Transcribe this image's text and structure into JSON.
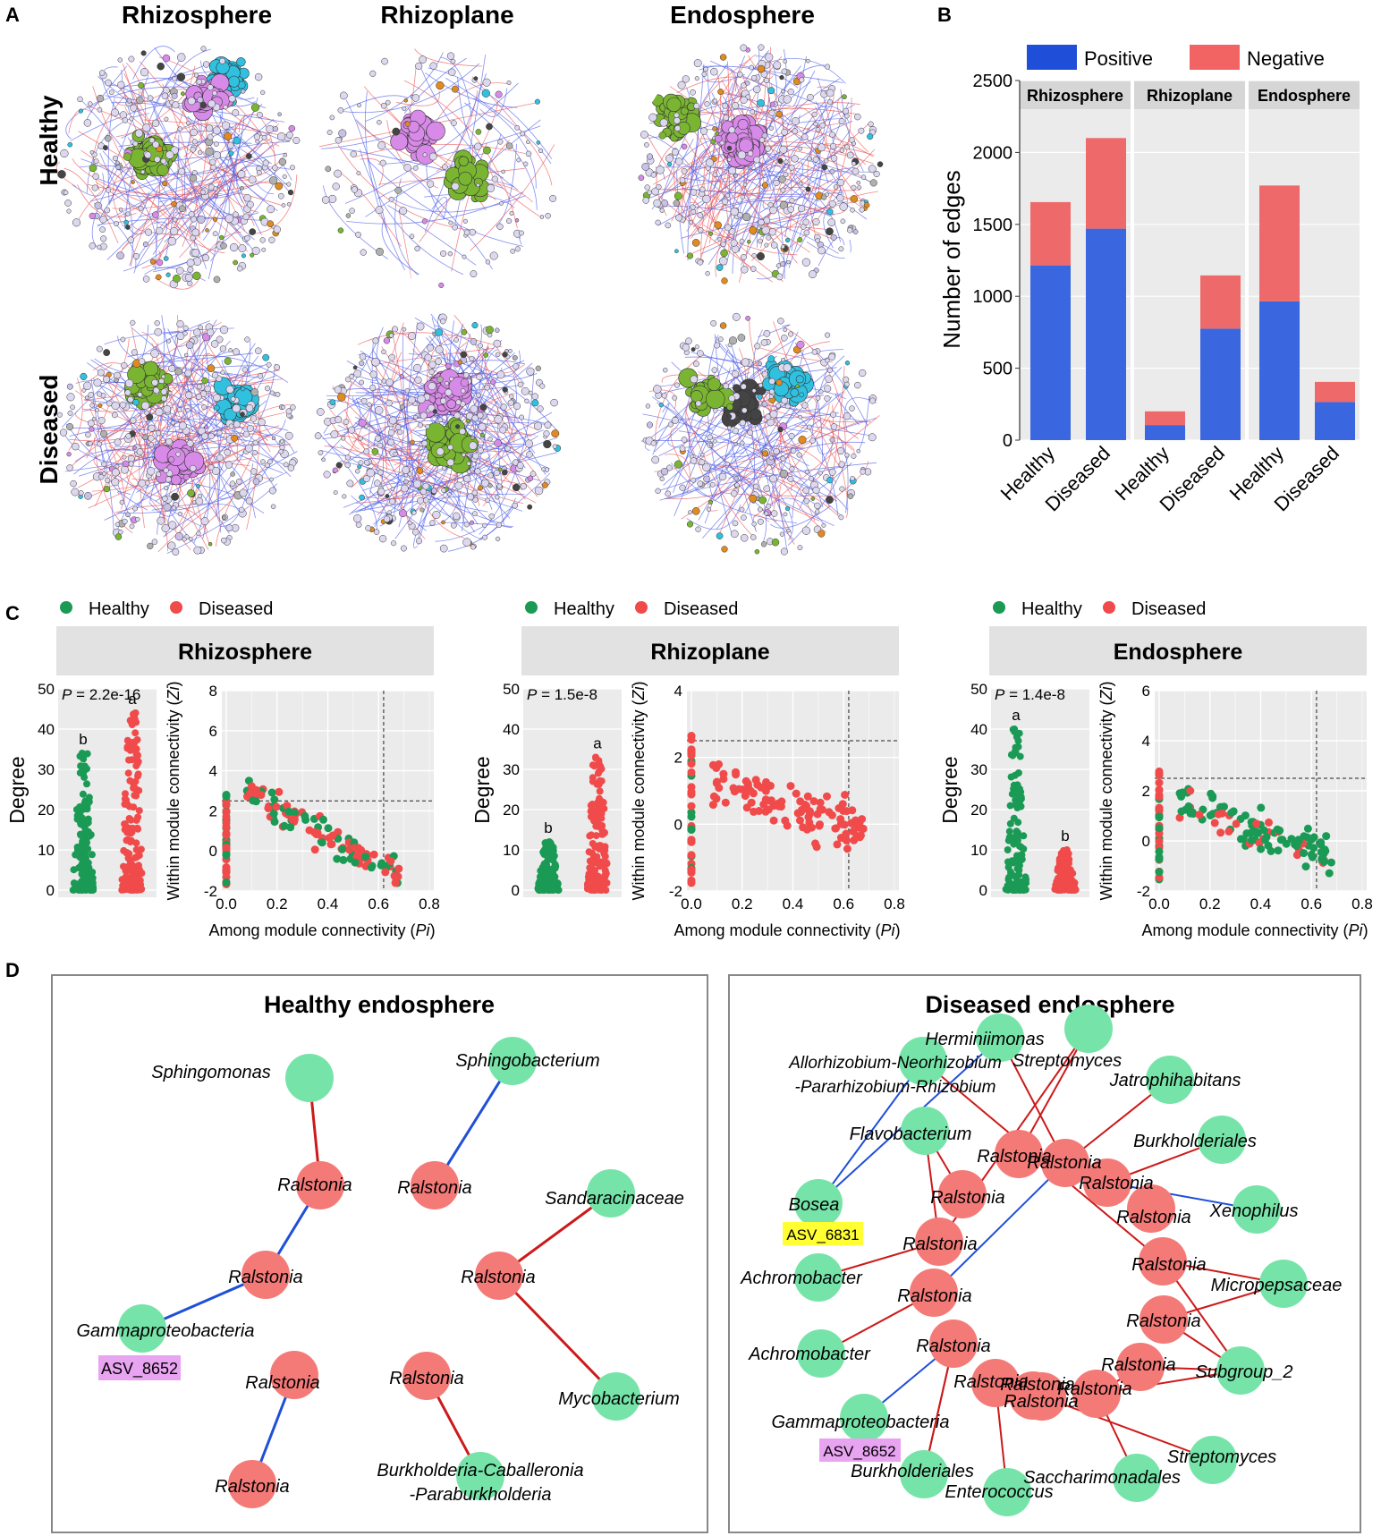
{
  "panel_labels": {
    "a": "A",
    "b": "B",
    "c": "C",
    "d": "D"
  },
  "network_headers": {
    "col1": "Rhizosphere",
    "col2": "Rhizoplane",
    "col3": "Endosphere",
    "row1": "Healthy",
    "row2": "Diseased"
  },
  "colors": {
    "positive": "#1f4fd8",
    "negative": "#f26464",
    "healthy": "#1a9a55",
    "diseased": "#f04a4a",
    "node_green": "#76e4a9",
    "node_red": "#f47a78",
    "strip": "#e2e2e2",
    "edge_pos": "#1f4fd8",
    "edge_neg": "#cc1a1a"
  },
  "chart_data": [
    {
      "type": "bar",
      "stacked": true,
      "title": "",
      "legend": [
        "Positive",
        "Negative"
      ],
      "legend_position": "top",
      "facets": [
        "Rhizosphere",
        "Rhizoplane",
        "Endosphere"
      ],
      "categories": [
        "Healthy",
        "Diseased"
      ],
      "series": [
        {
          "name": "Positive",
          "values": [
            [
              1215,
              1470
            ],
            [
              105,
              775
            ],
            [
              965,
              265
            ]
          ]
        },
        {
          "name": "Negative",
          "values": [
            [
              440,
              630
            ],
            [
              95,
              370
            ],
            [
              805,
              140
            ]
          ]
        }
      ],
      "totals": [
        [
          1655,
          2100
        ],
        [
          200,
          1145
        ],
        [
          1770,
          405
        ]
      ],
      "ylabel": "Number of edges",
      "xlabel": "",
      "ylim": [
        0,
        2500
      ],
      "yticks": [
        "0",
        "500",
        "1000",
        "1500",
        "2000",
        "2500"
      ]
    },
    {
      "type": "scatter",
      "legend": [
        "Healthy",
        "Diseased"
      ],
      "legend_position": "top-left",
      "facets": [
        {
          "name": "Rhizosphere",
          "p_value": "= 2.2e-16",
          "letters": {
            "healthy": "b",
            "diseased": "a"
          },
          "zi_ylim": [
            -2,
            8
          ],
          "zi_ticks": [
            "-2",
            "0",
            "2",
            "4",
            "6",
            "8"
          ],
          "zi_threshold": 2.5,
          "pi_threshold": 0.62
        },
        {
          "name": "Rhizoplane",
          "p_value": "= 1.5e-8",
          "letters": {
            "healthy": "b",
            "diseased": "a"
          },
          "zi_ylim": [
            -2,
            4
          ],
          "zi_ticks": [
            "-2",
            "0",
            "2",
            "4"
          ],
          "zi_threshold": 2.5,
          "pi_threshold": 0.62
        },
        {
          "name": "Endosphere",
          "p_value": "= 1.4e-8",
          "letters": {
            "healthy": "a",
            "diseased": "b"
          },
          "zi_ylim": [
            -2,
            6
          ],
          "zi_ticks": [
            "-2",
            "0",
            "2",
            "4",
            "6"
          ],
          "zi_threshold": 2.5,
          "pi_threshold": 0.62
        }
      ],
      "degree_ylim": [
        0,
        50
      ],
      "degree_ticks": [
        "0",
        "10",
        "20",
        "30",
        "40",
        "50"
      ],
      "degree_ylabel": "Degree",
      "p_label": "P",
      "zi_ylabel_main": "Within module connectivity (",
      "zi_ylabel_var": "Zi",
      "zi_ylabel_end": ")",
      "pi_xlabel_main": "Among module connectivity (",
      "pi_xlabel_var": "Pi",
      "pi_xlabel_end": ")",
      "pi_xlim": [
        0,
        0.8
      ],
      "pi_ticks": [
        "0.0",
        "0.2",
        "0.4",
        "0.6",
        "0.8"
      ],
      "degree_max": {
        "rhizosphere": {
          "healthy": 34,
          "diseased": 44
        },
        "rhizoplane": {
          "healthy": 12,
          "diseased": 33
        },
        "endosphere": {
          "healthy": 40,
          "diseased": 10
        }
      }
    }
  ],
  "networks_d": {
    "healthy": {
      "title": "Healthy endosphere",
      "nodes": [
        {
          "id": "h1",
          "label": "Sphingomonas",
          "kind": "green"
        },
        {
          "id": "h2",
          "label": "Ralstonia",
          "kind": "red"
        },
        {
          "id": "h3",
          "label": "Ralstonia",
          "kind": "red"
        },
        {
          "id": "h4",
          "label": "Gammaproteobacteria",
          "kind": "green"
        },
        {
          "id": "h5",
          "label": "Ralstonia",
          "kind": "red"
        },
        {
          "id": "h6",
          "label": "Ralstonia",
          "kind": "red"
        },
        {
          "id": "h7",
          "label": "Sphingobacterium",
          "kind": "green"
        },
        {
          "id": "h8",
          "label": "Ralstonia",
          "kind": "red"
        },
        {
          "id": "h9",
          "label": "Sandaracinaceae",
          "kind": "green"
        },
        {
          "id": "h10",
          "label": "Ralstonia",
          "kind": "red"
        },
        {
          "id": "h11",
          "label": "Mycobacterium",
          "kind": "green"
        },
        {
          "id": "h12",
          "label": "Ralstonia",
          "kind": "red"
        },
        {
          "id": "h13",
          "label": "Burkholderia-Caballeronia",
          "label2": "-Paraburkholderia",
          "kind": "green"
        }
      ],
      "edges": [
        [
          "h1",
          "h2",
          "neg"
        ],
        [
          "h2",
          "h3",
          "pos"
        ],
        [
          "h3",
          "h4",
          "pos"
        ],
        [
          "h5",
          "h6",
          "pos"
        ],
        [
          "h7",
          "h8",
          "pos"
        ],
        [
          "h9",
          "h10",
          "neg"
        ],
        [
          "h10",
          "h11",
          "neg"
        ],
        [
          "h12",
          "h13",
          "neg"
        ]
      ],
      "asv_label": "ASV_8652"
    },
    "diseased": {
      "title": "Diseased endosphere",
      "nodes": [
        {
          "id": "g1",
          "label": "Herminiimonas",
          "kind": "green"
        },
        {
          "id": "g2",
          "label": "Streptomyces",
          "kind": "green"
        },
        {
          "id": "g3",
          "label": "Allorhizobium-Neorhizobium",
          "label2": "-Pararhizobium-Rhizobium",
          "kind": "green"
        },
        {
          "id": "g4",
          "label": "Jatrophihabitans",
          "kind": "green"
        },
        {
          "id": "g5",
          "label": "Flavobacterium",
          "kind": "green"
        },
        {
          "id": "g6",
          "label": "Burkholderiales",
          "kind": "green"
        },
        {
          "id": "g7",
          "label": "Bosea",
          "kind": "green"
        },
        {
          "id": "g8",
          "label": "Xenophilus",
          "kind": "green"
        },
        {
          "id": "g9",
          "label": "Achromobacter",
          "kind": "green"
        },
        {
          "id": "g10",
          "label": "Micropepsaceae",
          "kind": "green"
        },
        {
          "id": "g11",
          "label": "Achromobacter",
          "kind": "green"
        },
        {
          "id": "g12",
          "label": "Subgroup_2",
          "kind": "green"
        },
        {
          "id": "g13",
          "label": "Gammaproteobacteria",
          "kind": "green"
        },
        {
          "id": "g14",
          "label": "Streptomyces",
          "kind": "green"
        },
        {
          "id": "g15",
          "label": "Burkholderiales",
          "kind": "green"
        },
        {
          "id": "g16",
          "label": "Enterococcus",
          "kind": "green"
        },
        {
          "id": "g17",
          "label": "Saccharimonadales",
          "kind": "green"
        },
        {
          "id": "r1",
          "label": "Ralstonia",
          "kind": "red"
        },
        {
          "id": "r2",
          "label": "Ralstonia",
          "kind": "red"
        },
        {
          "id": "r3",
          "label": "Ralstonia",
          "kind": "red"
        },
        {
          "id": "r4",
          "label": "Ralstonia",
          "kind": "red"
        },
        {
          "id": "r5",
          "label": "Ralstonia",
          "kind": "red"
        },
        {
          "id": "r6",
          "label": "Ralstonia",
          "kind": "red"
        },
        {
          "id": "r7",
          "label": "Ralstonia",
          "kind": "red"
        },
        {
          "id": "r8",
          "label": "Ralstonia",
          "kind": "red"
        },
        {
          "id": "r9",
          "label": "Ralstonia",
          "kind": "red"
        },
        {
          "id": "r10",
          "label": "Ralstonia",
          "kind": "red"
        },
        {
          "id": "r11",
          "label": "Ralstonia",
          "kind": "red"
        },
        {
          "id": "r12",
          "label": "Ralstonia",
          "kind": "red"
        },
        {
          "id": "r13",
          "label": "Ralstonia",
          "kind": "red"
        },
        {
          "id": "r14",
          "label": "Ralstonia",
          "kind": "red"
        },
        {
          "id": "r15",
          "label": "Ralstonia",
          "kind": "red"
        }
      ],
      "asv_yellow": "ASV_6831",
      "asv_pink": "ASV_8652"
    }
  }
}
